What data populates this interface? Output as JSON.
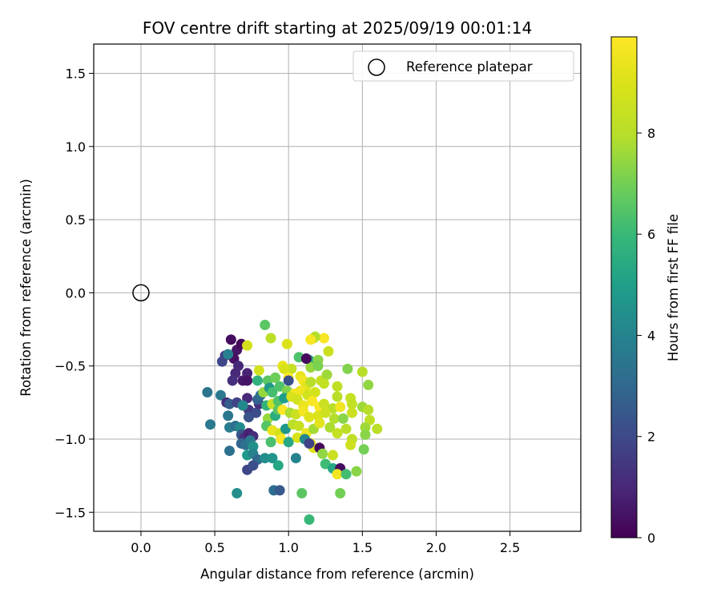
{
  "chart_data": {
    "type": "scatter",
    "title": "FOV centre drift starting at 2025/09/19 00:01:14",
    "xlabel": "Angular distance from reference (arcmin)",
    "ylabel": "Rotation from reference (arcmin)",
    "xlim": [
      -0.32,
      2.98
    ],
    "ylim": [
      -1.63,
      1.7
    ],
    "xticks": [
      0.0,
      0.5,
      1.0,
      1.5,
      2.0,
      2.5
    ],
    "xtick_labels": [
      "0.0",
      "0.5",
      "1.0",
      "1.5",
      "2.0",
      "2.5"
    ],
    "yticks": [
      -1.5,
      -1.0,
      -0.5,
      0.0,
      0.5,
      1.0,
      1.5
    ],
    "ytick_labels": [
      "−1.5",
      "−1.0",
      "−0.5",
      "0.0",
      "0.5",
      "1.0",
      "1.5"
    ],
    "grid": true,
    "legend": {
      "location": "upper right",
      "entries": [
        "Reference platepar"
      ]
    },
    "reference_point": {
      "x": 0.0,
      "y": 0.0,
      "label": "Reference platepar"
    },
    "colorbar": {
      "label": "Hours from first FF file",
      "min": 0,
      "max": 9.9,
      "ticks": [
        0,
        2,
        4,
        6,
        8
      ],
      "tick_labels": [
        "0",
        "2",
        "4",
        "6",
        "8"
      ],
      "colormap": "viridis"
    },
    "points": [
      [
        0.61,
        -0.32,
        0.3
      ],
      [
        0.65,
        -0.39,
        0.5
      ],
      [
        0.63,
        -0.45,
        0.4
      ],
      [
        0.57,
        -0.43,
        1.6
      ],
      [
        0.55,
        -0.47,
        1.9
      ],
      [
        0.68,
        -0.35,
        0.2
      ],
      [
        0.69,
        -0.6,
        0.6
      ],
      [
        0.64,
        -0.55,
        1.0
      ],
      [
        0.72,
        -0.55,
        0.9
      ],
      [
        0.59,
        -0.42,
        3.9
      ],
      [
        0.62,
        -0.6,
        1.2
      ],
      [
        0.66,
        -0.5,
        1.0
      ],
      [
        0.72,
        -0.6,
        0.5
      ],
      [
        0.45,
        -0.68,
        3.4
      ],
      [
        0.54,
        -0.7,
        3.6
      ],
      [
        0.58,
        -0.75,
        1.2
      ],
      [
        0.6,
        -0.76,
        2.6
      ],
      [
        0.65,
        -0.75,
        1.8
      ],
      [
        0.72,
        -0.72,
        1.0
      ],
      [
        0.73,
        -0.8,
        1.5
      ],
      [
        0.59,
        -0.84,
        3.5
      ],
      [
        0.69,
        -0.77,
        4.2
      ],
      [
        0.73,
        -0.85,
        2.3
      ],
      [
        0.78,
        -0.82,
        2.1
      ],
      [
        0.8,
        -0.76,
        1.2
      ],
      [
        0.79,
        -0.73,
        2.8
      ],
      [
        0.81,
        -0.7,
        3.2
      ],
      [
        0.83,
        -0.68,
        7.5
      ],
      [
        0.47,
        -0.9,
        3.6
      ],
      [
        0.6,
        -0.92,
        3.8
      ],
      [
        0.64,
        -0.91,
        3.2
      ],
      [
        0.67,
        -0.92,
        4.2
      ],
      [
        0.68,
        -0.97,
        2.4
      ],
      [
        0.7,
        -0.99,
        1.2
      ],
      [
        0.73,
        -0.96,
        0.8
      ],
      [
        0.76,
        -0.98,
        1.1
      ],
      [
        0.68,
        -1.03,
        2.9
      ],
      [
        0.71,
        -1.04,
        3.3
      ],
      [
        0.74,
        -1.01,
        3.6
      ],
      [
        0.76,
        -1.05,
        4.5
      ],
      [
        0.6,
        -1.08,
        3.3
      ],
      [
        0.72,
        -1.11,
        4.8
      ],
      [
        0.76,
        -1.1,
        4.0
      ],
      [
        0.79,
        -1.14,
        3.1
      ],
      [
        0.84,
        -1.13,
        4.4
      ],
      [
        0.72,
        -1.21,
        1.9
      ],
      [
        0.76,
        -1.18,
        2.2
      ],
      [
        0.89,
        -1.13,
        4.6
      ],
      [
        0.93,
        -1.18,
        5.3
      ],
      [
        1.05,
        -1.13,
        4.0
      ],
      [
        0.65,
        -1.37,
        4.4
      ],
      [
        0.9,
        -1.35,
        3.2
      ],
      [
        0.94,
        -1.35,
        2.5
      ],
      [
        1.09,
        -1.37,
        6.6
      ],
      [
        1.14,
        -1.55,
        6.0
      ],
      [
        0.84,
        -0.22,
        6.6
      ],
      [
        0.88,
        -0.31,
        8.1
      ],
      [
        0.72,
        -0.36,
        8.8
      ],
      [
        1.17,
        -0.31,
        8.4
      ],
      [
        1.24,
        -0.31,
        9.8
      ],
      [
        1.18,
        -0.3,
        7.9
      ],
      [
        1.15,
        -0.32,
        9.7
      ],
      [
        0.99,
        -0.35,
        9.0
      ],
      [
        1.07,
        -0.44,
        6.4
      ],
      [
        1.14,
        -0.46,
        5.5
      ],
      [
        1.2,
        -0.46,
        7.3
      ],
      [
        1.27,
        -0.4,
        8.5
      ],
      [
        1.15,
        -0.51,
        7.5
      ],
      [
        1.02,
        -0.52,
        8.4
      ],
      [
        1.08,
        -0.57,
        9.4
      ],
      [
        1.2,
        -0.5,
        7.1
      ],
      [
        0.8,
        -0.53,
        8.7
      ],
      [
        0.79,
        -0.6,
        5.7
      ],
      [
        0.86,
        -0.6,
        6.6
      ],
      [
        0.91,
        -0.58,
        6.9
      ],
      [
        0.96,
        -0.5,
        9.3
      ],
      [
        0.97,
        -0.52,
        8.9
      ],
      [
        1.0,
        -0.58,
        9.9
      ],
      [
        1.1,
        -0.6,
        9.6
      ],
      [
        1.12,
        -0.64,
        9.2
      ],
      [
        1.15,
        -0.61,
        8.0
      ],
      [
        1.22,
        -0.6,
        8.4
      ],
      [
        1.26,
        -0.56,
        7.6
      ],
      [
        1.24,
        -0.62,
        8.3
      ],
      [
        1.4,
        -0.52,
        7.2
      ],
      [
        1.5,
        -0.54,
        8.0
      ],
      [
        1.54,
        -0.63,
        7.4
      ],
      [
        0.87,
        -0.65,
        4.7
      ],
      [
        0.89,
        -0.68,
        6.2
      ],
      [
        0.94,
        -0.64,
        6.4
      ],
      [
        0.99,
        -0.67,
        7.2
      ],
      [
        1.04,
        -0.69,
        9.8
      ],
      [
        1.08,
        -0.67,
        9.5
      ],
      [
        1.13,
        -0.7,
        8.7
      ],
      [
        1.18,
        -0.68,
        8.8
      ],
      [
        1.33,
        -0.64,
        8.2
      ],
      [
        1.33,
        -0.71,
        8.0
      ],
      [
        1.42,
        -0.72,
        8.4
      ],
      [
        0.85,
        -0.77,
        5.8
      ],
      [
        0.89,
        -0.76,
        8.4
      ],
      [
        0.93,
        -0.74,
        6.4
      ],
      [
        0.97,
        -0.72,
        5.0
      ],
      [
        1.02,
        -0.71,
        9.0
      ],
      [
        1.06,
        -0.73,
        8.7
      ],
      [
        1.1,
        -0.77,
        9.4
      ],
      [
        1.16,
        -0.74,
        9.7
      ],
      [
        1.21,
        -0.78,
        9.8
      ],
      [
        1.24,
        -0.76,
        8.5
      ],
      [
        1.3,
        -0.79,
        8.0
      ],
      [
        1.35,
        -0.78,
        9.6
      ],
      [
        1.43,
        -0.76,
        8.3
      ],
      [
        1.5,
        -0.78,
        7.6
      ],
      [
        1.54,
        -0.8,
        8.0
      ],
      [
        0.86,
        -0.86,
        7.5
      ],
      [
        0.91,
        -0.84,
        5.5
      ],
      [
        0.93,
        -0.8,
        6.6
      ],
      [
        0.96,
        -0.8,
        9.9
      ],
      [
        1.01,
        -0.82,
        7.8
      ],
      [
        1.05,
        -0.83,
        8.5
      ],
      [
        1.1,
        -0.81,
        9.6
      ],
      [
        1.14,
        -0.85,
        9.1
      ],
      [
        1.2,
        -0.84,
        9.0
      ],
      [
        1.25,
        -0.82,
        8.6
      ],
      [
        1.31,
        -0.86,
        7.9
      ],
      [
        1.37,
        -0.86,
        7.3
      ],
      [
        1.43,
        -0.82,
        8.5
      ],
      [
        1.55,
        -0.87,
        8.2
      ],
      [
        0.85,
        -0.91,
        6.5
      ],
      [
        0.89,
        -0.94,
        9.4
      ],
      [
        0.94,
        -0.96,
        8.8
      ],
      [
        0.98,
        -0.93,
        4.7
      ],
      [
        1.03,
        -0.9,
        8.1
      ],
      [
        1.07,
        -0.91,
        8.4
      ],
      [
        1.12,
        -0.96,
        9.5
      ],
      [
        1.17,
        -0.93,
        7.7
      ],
      [
        1.21,
        -0.89,
        9.2
      ],
      [
        1.28,
        -0.92,
        7.8
      ],
      [
        1.33,
        -0.96,
        8.4
      ],
      [
        1.39,
        -0.93,
        8.1
      ],
      [
        1.52,
        -0.92,
        7.6
      ],
      [
        1.6,
        -0.93,
        8.1
      ],
      [
        0.88,
        -1.02,
        6.3
      ],
      [
        0.95,
        -1.0,
        9.8
      ],
      [
        1.0,
        -1.02,
        5.3
      ],
      [
        1.06,
        -0.99,
        8.9
      ],
      [
        1.11,
        -1.0,
        4.1
      ],
      [
        1.15,
        -1.03,
        9.6
      ],
      [
        1.17,
        -1.06,
        9.0
      ],
      [
        1.21,
        -1.06,
        0.2
      ],
      [
        1.43,
        -1.0,
        8.2
      ],
      [
        1.42,
        -1.04,
        8.6
      ],
      [
        1.52,
        -0.97,
        7.3
      ],
      [
        1.51,
        -1.07,
        7.0
      ],
      [
        1.23,
        -1.1,
        7.4
      ],
      [
        1.3,
        -1.11,
        8.5
      ],
      [
        1.25,
        -1.17,
        6.1
      ],
      [
        1.3,
        -1.2,
        5.3
      ],
      [
        1.35,
        -1.2,
        0.3
      ],
      [
        1.33,
        -1.24,
        9.6
      ],
      [
        1.39,
        -1.24,
        6.2
      ],
      [
        1.46,
        -1.22,
        7.3
      ],
      [
        1.35,
        -1.37,
        7.0
      ],
      [
        1.12,
        -0.45,
        0.2
      ],
      [
        1.0,
        -0.6,
        2.2
      ],
      [
        1.14,
        -1.03,
        1.8
      ]
    ]
  }
}
